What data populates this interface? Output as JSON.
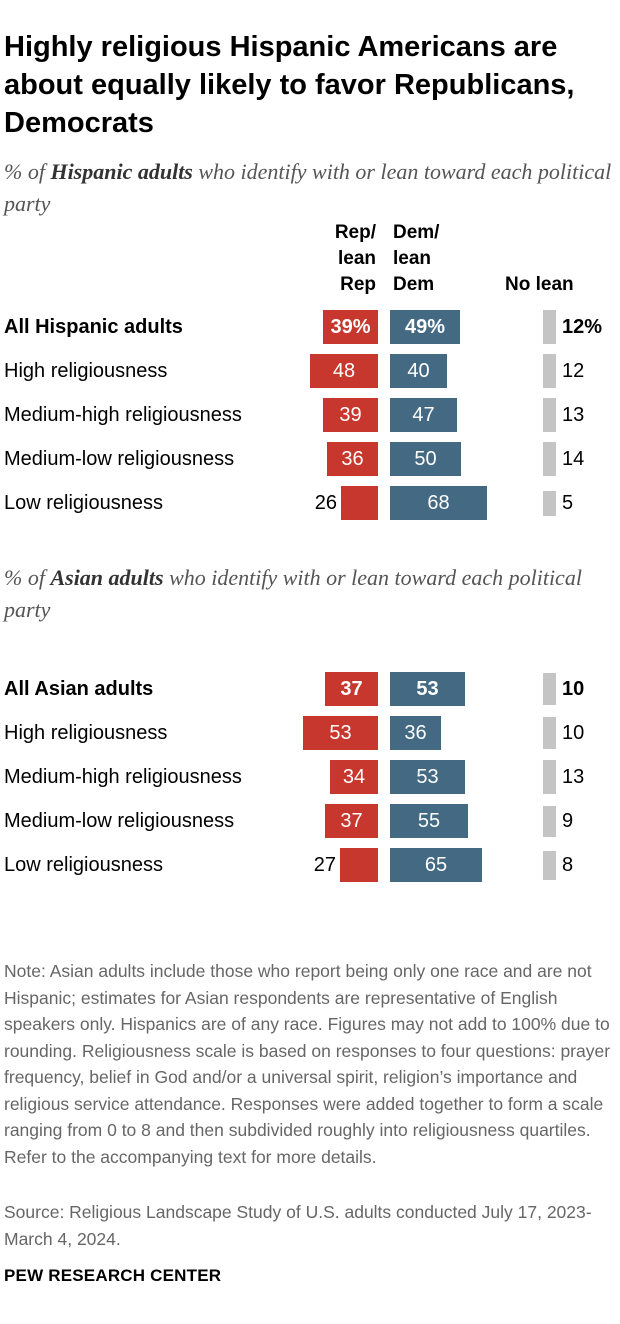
{
  "title": "Highly religious Hispanic Americans are about equally likely to favor Republicans, Democrats",
  "panels": [
    {
      "subtitle_prefix": "% of ",
      "subtitle_emph": "Hispanic adults",
      "subtitle_suffix": " who identify with or lean toward each political party"
    },
    {
      "subtitle_prefix": "% of ",
      "subtitle_emph": "Asian adults",
      "subtitle_suffix": " who identify with or lean toward each political party"
    }
  ],
  "column_headers": {
    "rep": [
      "Rep/",
      "lean",
      "Rep"
    ],
    "dem": [
      "Dem/",
      "lean",
      "Dem"
    ],
    "no_lean": "No lean"
  },
  "colors": {
    "rep": "#c8372d",
    "dem": "#436983",
    "no_lean": "#c4c4c4"
  },
  "chart_data": [
    {
      "type": "bar",
      "orientation": "horizontal",
      "subtitle": "% of Hispanic adults who identify with or lean toward each political party",
      "categories": [
        "All Hispanic adults",
        "High religiousness",
        "Medium-high religiousness",
        "Medium-low religiousness",
        "Low religiousness"
      ],
      "series": [
        {
          "name": "Rep/lean Rep",
          "values": [
            39,
            48,
            39,
            36,
            26
          ],
          "labels": [
            "39%",
            "48",
            "39",
            "36",
            "26"
          ]
        },
        {
          "name": "Dem/lean Dem",
          "values": [
            49,
            40,
            47,
            50,
            68
          ],
          "labels": [
            "49%",
            "40",
            "47",
            "50",
            "68"
          ]
        },
        {
          "name": "No lean",
          "values": [
            12,
            12,
            13,
            14,
            5
          ],
          "labels": [
            "12%",
            "12",
            "13",
            "14",
            "5"
          ]
        }
      ]
    },
    {
      "type": "bar",
      "orientation": "horizontal",
      "subtitle": "% of Asian adults who identify with or lean toward each political party",
      "categories": [
        "All Asian adults",
        "High religiousness",
        "Medium-high religiousness",
        "Medium-low religiousness",
        "Low religiousness"
      ],
      "series": [
        {
          "name": "Rep/lean Rep",
          "values": [
            37,
            53,
            34,
            37,
            27
          ],
          "labels": [
            "37",
            "53",
            "34",
            "37",
            "27"
          ]
        },
        {
          "name": "Dem/lean Dem",
          "values": [
            53,
            36,
            53,
            55,
            65
          ],
          "labels": [
            "53",
            "36",
            "53",
            "55",
            "65"
          ]
        },
        {
          "name": "No lean",
          "values": [
            10,
            10,
            13,
            9,
            8
          ],
          "labels": [
            "10",
            "10",
            "13",
            "9",
            "8"
          ]
        }
      ]
    }
  ],
  "note": "Note: Asian adults include those who report being only one race and are not Hispanic; estimates for Asian respondents are representative of English speakers only. Hispanics are of any race. Figures may not add to 100% due to rounding. Religiousness scale is based on responses to four questions: prayer frequency, belief in God and/or a universal spirit, religion’s importance and religious service attendance. Responses were added together to form a scale ranging from 0 to 8 and then subdivided roughly into religiousness quartiles. Refer to the accompanying text for more details.",
  "source": "Source: Religious Landscape Study of U.S. adults conducted July 17, 2023-March 4, 2024.",
  "brand": "PEW RESEARCH CENTER"
}
